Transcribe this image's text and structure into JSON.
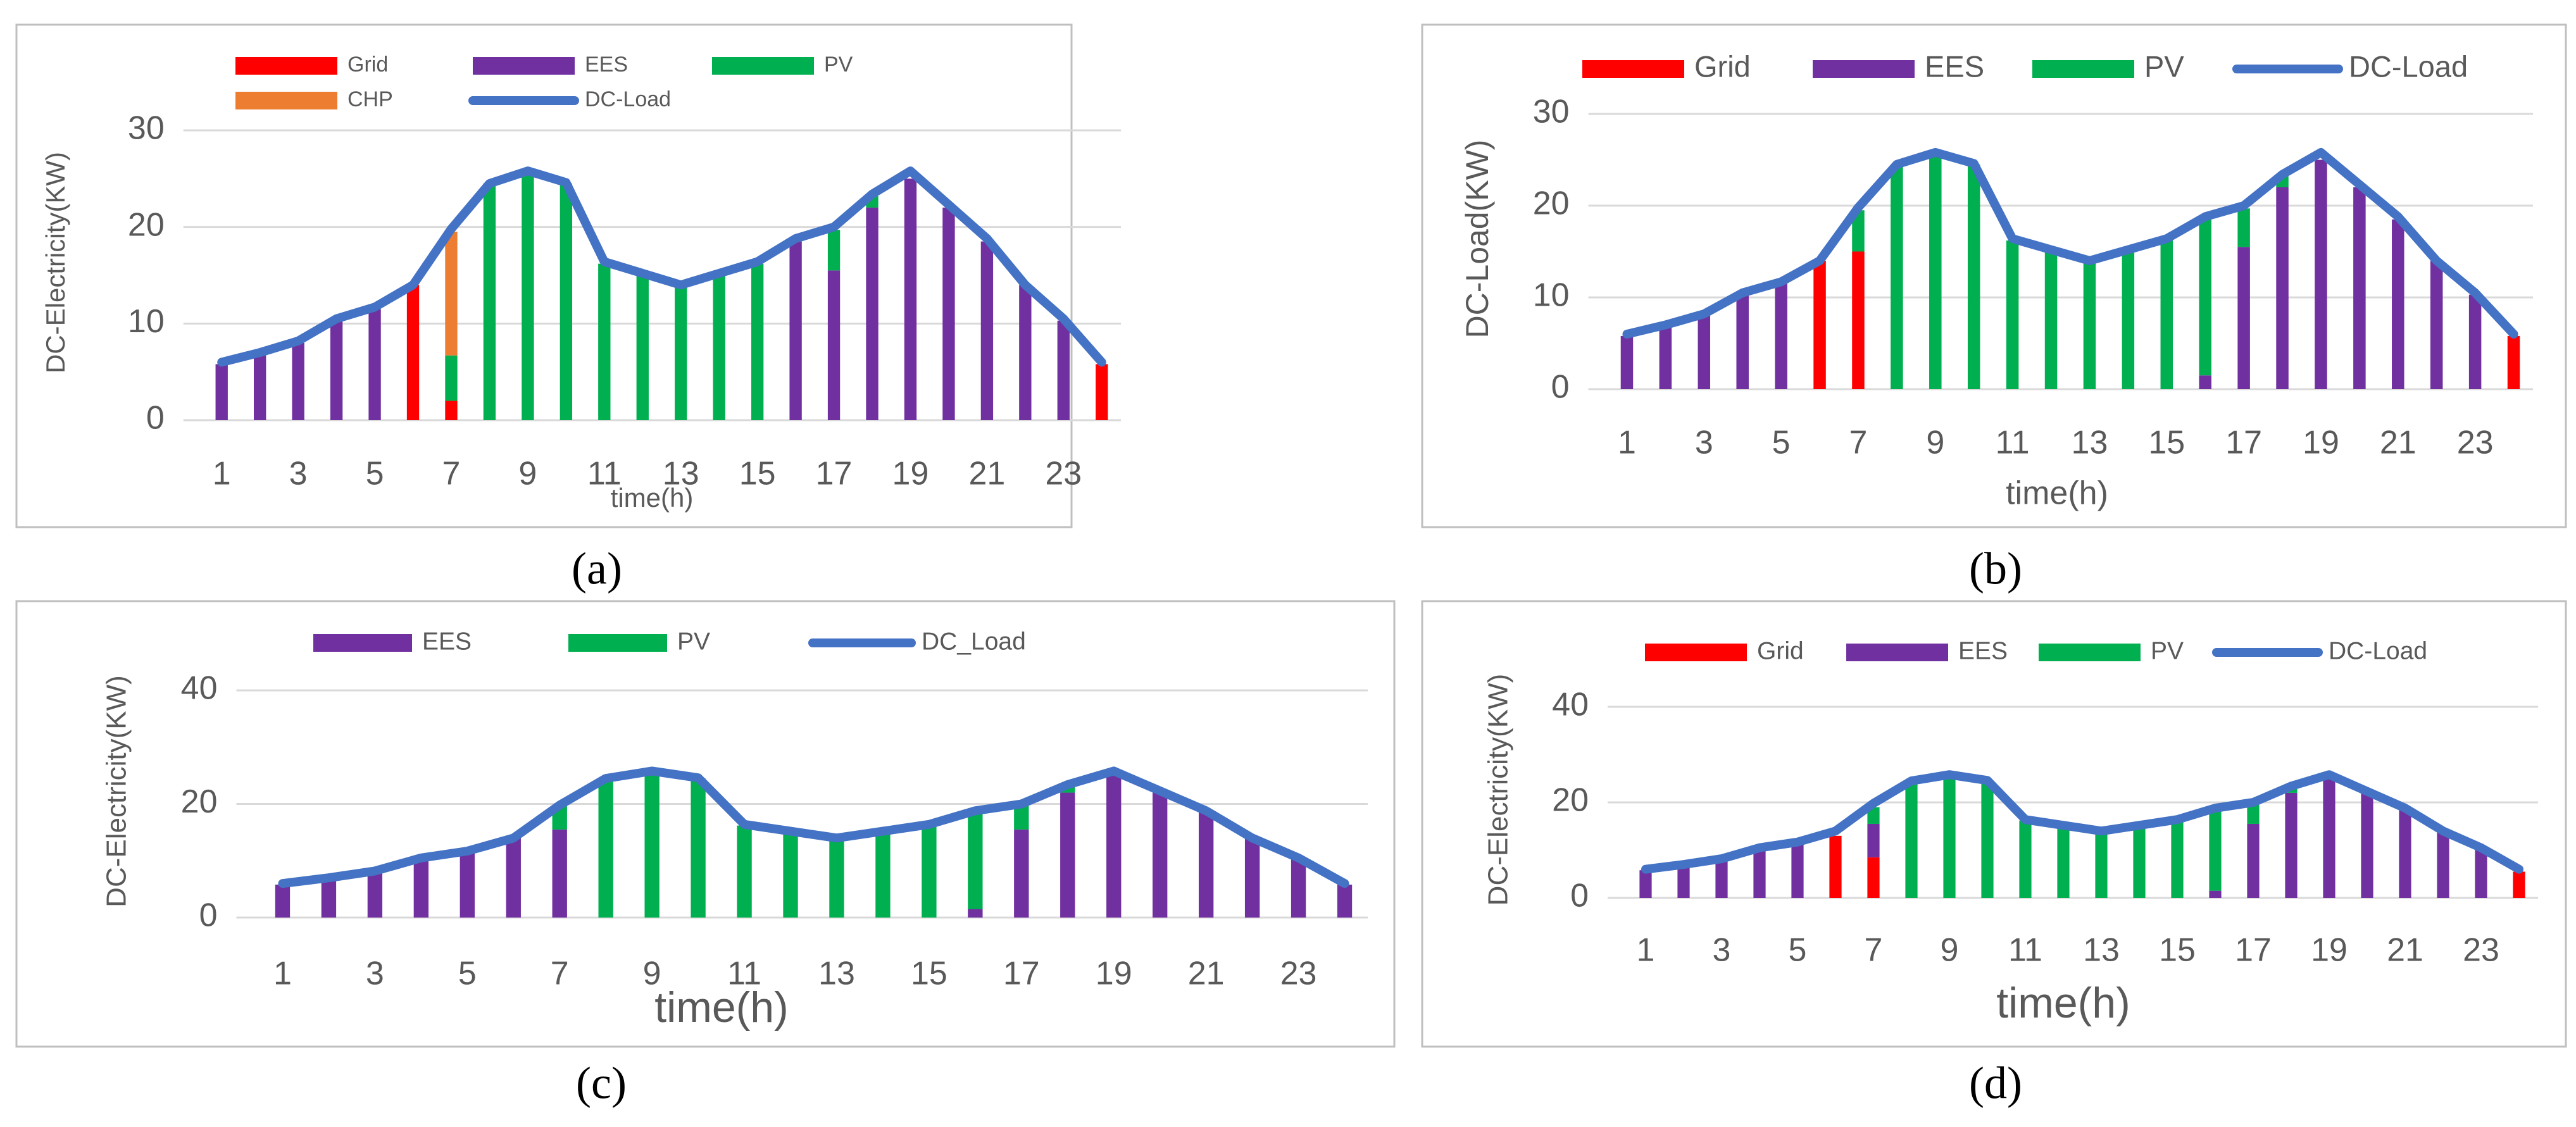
{
  "chart_data": [
    {
      "type": "bar",
      "stacked": true,
      "caption": "(a)",
      "x_label": "time(h)",
      "y_label": "DC-Electricity(KW)",
      "categories": [
        "1",
        null,
        "3",
        null,
        "5",
        null,
        "7",
        null,
        "9",
        null,
        "11",
        null,
        "13",
        null,
        "15",
        null,
        "17",
        null,
        "19",
        null,
        "21",
        null,
        "23",
        null
      ],
      "ylim": [
        0,
        30
      ],
      "yticks": [
        0,
        10,
        20,
        30
      ],
      "grid": true,
      "series": [
        {
          "name": "Grid",
          "color": "#ff0000",
          "values": [
            null,
            null,
            null,
            null,
            null,
            14,
            2,
            null,
            null,
            null,
            null,
            null,
            null,
            null,
            null,
            null,
            null,
            null,
            null,
            null,
            null,
            null,
            null,
            5.8
          ]
        },
        {
          "name": "EES",
          "color": "#7030a0",
          "values": [
            5.8,
            7,
            8,
            10.3,
            11.5,
            null,
            null,
            null,
            null,
            null,
            null,
            null,
            null,
            null,
            null,
            18.5,
            15.5,
            22,
            25,
            22,
            18.5,
            14,
            10.3,
            null
          ]
        },
        {
          "name": "PV",
          "color": "#00b050",
          "values": [
            null,
            null,
            null,
            null,
            null,
            null,
            4.7,
            24.5,
            25.8,
            24.5,
            16.2,
            15,
            14,
            15,
            16.2,
            null,
            4.2,
            1.2,
            null,
            null,
            null,
            null,
            null,
            null
          ]
        },
        {
          "name": "CHP",
          "color": "#ed7d31",
          "values": [
            null,
            null,
            null,
            null,
            null,
            null,
            12.8,
            null,
            null,
            null,
            null,
            null,
            null,
            null,
            null,
            null,
            null,
            null,
            null,
            null,
            null,
            null,
            null,
            null
          ]
        },
        {
          "name": "DC-Load",
          "color": "#4472c4",
          "type": "line",
          "values": [
            6,
            7,
            8.2,
            10.5,
            11.7,
            14,
            19.8,
            24.5,
            25.8,
            24.6,
            16.4,
            15.2,
            14,
            15.2,
            16.4,
            18.8,
            20,
            23.4,
            25.8,
            22.3,
            18.8,
            14,
            10.5,
            6
          ]
        }
      ]
    },
    {
      "type": "bar",
      "stacked": true,
      "caption": "(b)",
      "x_label": "time(h)",
      "y_label": "DC-Load(KW)",
      "categories": [
        "1",
        null,
        "3",
        null,
        "5",
        null,
        "7",
        null,
        "9",
        null,
        "11",
        null,
        "13",
        null,
        "15",
        null,
        "17",
        null,
        "19",
        null,
        "21",
        null,
        "23",
        null
      ],
      "ylim": [
        0,
        30
      ],
      "yticks": [
        0,
        10,
        20,
        30
      ],
      "grid": true,
      "series": [
        {
          "name": "Grid",
          "color": "#ff0000",
          "values": [
            null,
            null,
            null,
            null,
            null,
            14,
            15,
            null,
            null,
            null,
            null,
            null,
            null,
            null,
            null,
            null,
            null,
            null,
            null,
            null,
            null,
            null,
            null,
            5.8
          ]
        },
        {
          "name": "EES",
          "color": "#7030a0",
          "values": [
            5.8,
            7,
            8,
            10.3,
            11.5,
            null,
            null,
            null,
            null,
            null,
            null,
            null,
            null,
            null,
            null,
            1.5,
            15.5,
            22,
            25,
            22,
            18.5,
            14,
            10.3,
            null
          ]
        },
        {
          "name": "PV",
          "color": "#00b050",
          "values": [
            null,
            null,
            null,
            null,
            null,
            null,
            4.5,
            24.5,
            25.8,
            24.5,
            16.2,
            15,
            14,
            15,
            16.2,
            17,
            4.2,
            1.2,
            null,
            null,
            null,
            null,
            null,
            null
          ]
        },
        {
          "name": "DC-Load",
          "color": "#4472c4",
          "type": "line",
          "values": [
            6,
            7,
            8.2,
            10.5,
            11.7,
            14,
            19.8,
            24.5,
            25.8,
            24.6,
            16.4,
            15.2,
            14,
            15.2,
            16.4,
            18.8,
            20,
            23.4,
            25.8,
            22.3,
            18.8,
            14,
            10.5,
            6
          ]
        }
      ]
    },
    {
      "type": "bar",
      "stacked": true,
      "caption": "(c)",
      "x_label": "time(h)",
      "y_label": "DC-Electricity(KW)",
      "categories": [
        "1",
        null,
        "3",
        null,
        "5",
        null,
        "7",
        null,
        "9",
        null,
        "11",
        null,
        "13",
        null,
        "15",
        null,
        "17",
        null,
        "19",
        null,
        "21",
        null,
        "23",
        null
      ],
      "ylim": [
        0,
        40
      ],
      "yticks": [
        0,
        20,
        40
      ],
      "grid": true,
      "series": [
        {
          "name": "EES",
          "color": "#7030a0",
          "values": [
            5.8,
            7,
            8,
            10.3,
            11.5,
            14,
            15.5,
            null,
            null,
            null,
            null,
            null,
            null,
            null,
            null,
            1.5,
            15.5,
            22,
            25,
            22,
            18.5,
            14,
            10.3,
            5.8
          ]
        },
        {
          "name": "PV",
          "color": "#00b050",
          "values": [
            null,
            null,
            null,
            null,
            null,
            null,
            4.3,
            24.5,
            25.8,
            24.5,
            16.2,
            15,
            14,
            15,
            16.2,
            17,
            4.2,
            1.2,
            null,
            null,
            null,
            null,
            null,
            null
          ]
        },
        {
          "name": "DC_Load",
          "color": "#4472c4",
          "type": "line",
          "values": [
            6,
            7,
            8.2,
            10.5,
            11.7,
            14,
            19.8,
            24.5,
            25.8,
            24.6,
            16.4,
            15.2,
            14,
            15.2,
            16.4,
            18.8,
            20,
            23.4,
            25.8,
            22.3,
            18.8,
            14,
            10.5,
            6
          ]
        }
      ]
    },
    {
      "type": "bar",
      "stacked": true,
      "caption": "(d)",
      "x_label": "time(h)",
      "y_label": "DC-Electricity(KW)",
      "categories": [
        "1",
        null,
        "3",
        null,
        "5",
        null,
        "7",
        null,
        "9",
        null,
        "11",
        null,
        "13",
        null,
        "15",
        null,
        "17",
        null,
        "19",
        null,
        "21",
        null,
        "23",
        null
      ],
      "ylim": [
        0,
        40
      ],
      "yticks": [
        0,
        20,
        40
      ],
      "grid": true,
      "series": [
        {
          "name": "Grid",
          "color": "#ff0000",
          "values": [
            null,
            null,
            null,
            null,
            null,
            13,
            8.5,
            null,
            null,
            null,
            null,
            null,
            null,
            null,
            null,
            null,
            null,
            null,
            null,
            null,
            null,
            null,
            null,
            5.5
          ]
        },
        {
          "name": "EES",
          "color": "#7030a0",
          "values": [
            5.8,
            7,
            8,
            10.3,
            11.5,
            null,
            7,
            null,
            null,
            null,
            null,
            null,
            null,
            null,
            null,
            1.5,
            15.5,
            22,
            25,
            22,
            18.5,
            14,
            10.3,
            null
          ]
        },
        {
          "name": "PV",
          "color": "#00b050",
          "values": [
            null,
            null,
            null,
            null,
            null,
            null,
            3.5,
            24.5,
            25.8,
            24.5,
            16.2,
            15,
            14,
            15,
            16.2,
            17,
            4.2,
            1.2,
            null,
            null,
            null,
            null,
            null,
            null
          ]
        },
        {
          "name": "DC-Load",
          "color": "#4472c4",
          "type": "line",
          "values": [
            6,
            7,
            8.2,
            10.5,
            11.7,
            14,
            19.8,
            24.5,
            25.8,
            24.6,
            16.4,
            15.2,
            14,
            15.2,
            16.4,
            18.8,
            20,
            23.4,
            25.8,
            22.3,
            18.8,
            14,
            10.5,
            6
          ]
        }
      ]
    }
  ]
}
